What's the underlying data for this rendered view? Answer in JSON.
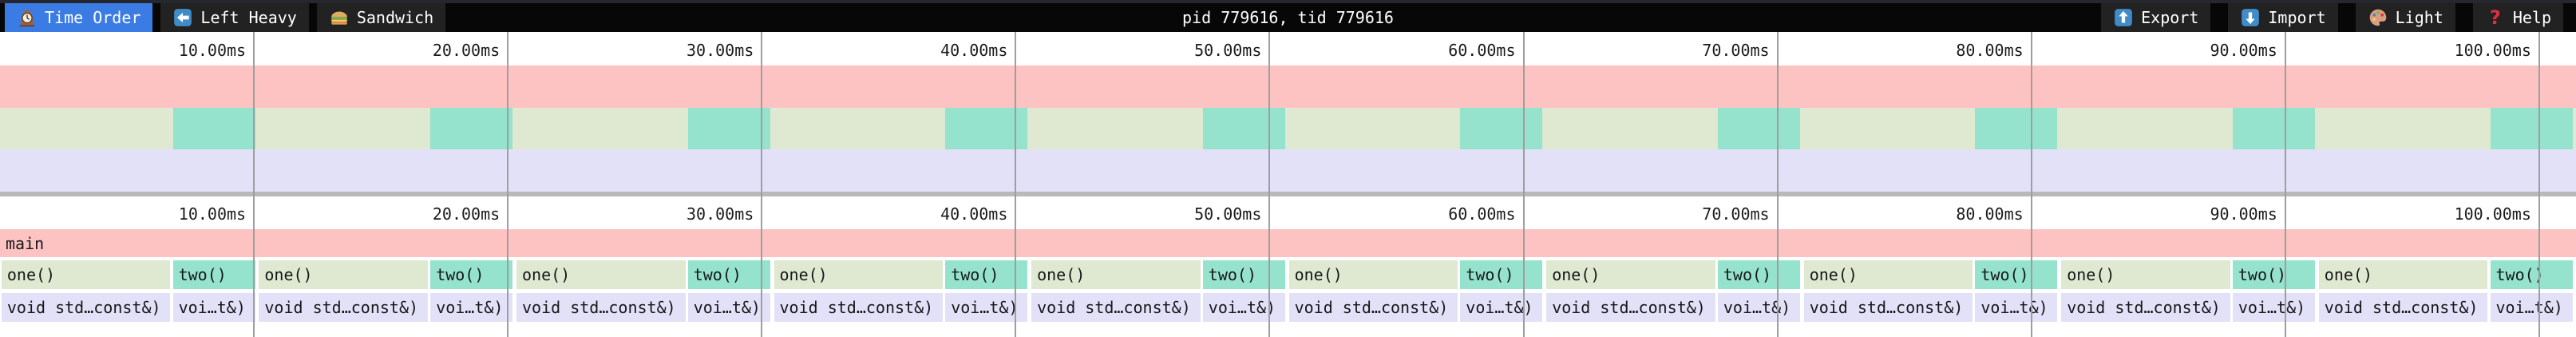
{
  "toolbar": {
    "tabs": [
      {
        "label": "Time Order",
        "icon": "clock-icon",
        "selected": true
      },
      {
        "label": "Left Heavy",
        "icon": "left-arrow-icon",
        "selected": false
      },
      {
        "label": "Sandwich",
        "icon": "sandwich-icon",
        "selected": false
      }
    ],
    "title": "pid 779616, tid 779616",
    "actions": [
      {
        "label": "Export",
        "icon": "export-icon"
      },
      {
        "label": "Import",
        "icon": "import-icon"
      },
      {
        "label": "Light",
        "icon": "palette-icon"
      },
      {
        "label": "Help",
        "icon": "help-icon"
      }
    ]
  },
  "colors": {
    "accent_blue": "#3b7be4",
    "toolbar_bg": "#070707",
    "toolbar_button_bg": "#222222",
    "toolbar_top_strip": "#26262e",
    "frame_pink": "#fcc3c2",
    "frame_green": "#dfe8d0",
    "frame_teal": "#95e3cc",
    "frame_lavender": "#e3e1f8",
    "divider": "#b9b9b9",
    "gridline": "#9e9e9e",
    "text_dark": "#17171a",
    "text_light": "#ffffff"
  },
  "chart_data": {
    "type": "flamegraph",
    "unit": "ms",
    "total_ms": 101.45,
    "ticks": [
      {
        "ms": 10,
        "label": "10.00ms"
      },
      {
        "ms": 20,
        "label": "20.00ms"
      },
      {
        "ms": 30,
        "label": "30.00ms"
      },
      {
        "ms": 40,
        "label": "40.00ms"
      },
      {
        "ms": 50,
        "label": "50.00ms"
      },
      {
        "ms": 60,
        "label": "60.00ms"
      },
      {
        "ms": 70,
        "label": "70.00ms"
      },
      {
        "ms": 80,
        "label": "80.00ms"
      },
      {
        "ms": 90,
        "label": "90.00ms"
      },
      {
        "ms": 100,
        "label": "100.00ms"
      }
    ],
    "root": {
      "label": "main",
      "start": 0,
      "end": 101.45
    },
    "labels": {
      "one": "one()",
      "two": "two()",
      "void_one": "void std…const&)",
      "void_two": "voi…t&)"
    },
    "cycles": [
      {
        "one": [
          0.06,
          6.71
        ],
        "two": [
          6.81,
          10.05
        ]
      },
      {
        "one": [
          10.2,
          16.85
        ],
        "two": [
          16.95,
          20.19
        ]
      },
      {
        "one": [
          20.34,
          26.99
        ],
        "two": [
          27.09,
          30.33
        ]
      },
      {
        "one": [
          30.48,
          37.13
        ],
        "two": [
          37.23,
          40.47
        ]
      },
      {
        "one": [
          40.62,
          47.27
        ],
        "two": [
          47.37,
          50.61
        ]
      },
      {
        "one": [
          50.76,
          57.41
        ],
        "two": [
          57.51,
          60.75
        ]
      },
      {
        "one": [
          60.9,
          67.55
        ],
        "two": [
          67.65,
          70.89
        ]
      },
      {
        "one": [
          71.04,
          77.69
        ],
        "two": [
          77.79,
          81.03
        ]
      },
      {
        "one": [
          81.18,
          87.83
        ],
        "two": [
          87.93,
          91.17
        ]
      },
      {
        "one": [
          91.32,
          97.97
        ],
        "two": [
          98.07,
          101.31
        ]
      }
    ]
  }
}
